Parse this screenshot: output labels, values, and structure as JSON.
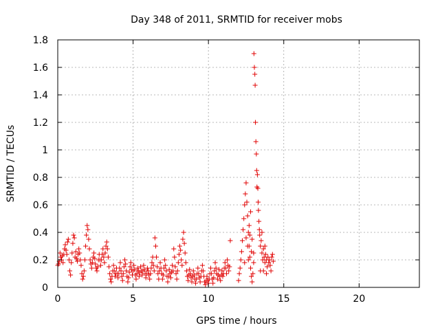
{
  "chart_data": {
    "type": "scatter",
    "title": "Day 348 of 2011, SRMTID for receiver mobs",
    "xlabel": "GPS time / hours",
    "ylabel": "SRMTID / TECUs",
    "xlim": [
      0,
      24
    ],
    "ylim": [
      0,
      1.8
    ],
    "xticks": [
      0,
      5,
      10,
      15,
      20
    ],
    "yticks": [
      0,
      0.2,
      0.4,
      0.6,
      0.8,
      1,
      1.2,
      1.4,
      1.6,
      1.8
    ],
    "ytick_labels": [
      "0",
      "0.2",
      "0.4",
      "0.6",
      "0.8",
      "1",
      "1.2",
      "1.4",
      "1.6",
      "1.8"
    ],
    "grid": true,
    "marker": "+",
    "color": "#e00000",
    "points": [
      [
        0.0,
        0.16
      ],
      [
        0.05,
        0.17
      ],
      [
        0.1,
        0.19
      ],
      [
        0.15,
        0.25
      ],
      [
        0.2,
        0.22
      ],
      [
        0.25,
        0.2
      ],
      [
        0.3,
        0.23
      ],
      [
        0.35,
        0.18
      ],
      [
        0.4,
        0.24
      ],
      [
        0.45,
        0.28
      ],
      [
        0.5,
        0.31
      ],
      [
        0.55,
        0.27
      ],
      [
        0.6,
        0.24
      ],
      [
        0.65,
        0.33
      ],
      [
        0.7,
        0.35
      ],
      [
        0.75,
        0.2
      ],
      [
        0.8,
        0.12
      ],
      [
        0.85,
        0.09
      ],
      [
        0.9,
        0.18
      ],
      [
        0.95,
        0.25
      ],
      [
        1.0,
        0.32
      ],
      [
        1.05,
        0.38
      ],
      [
        1.1,
        0.36
      ],
      [
        1.15,
        0.22
      ],
      [
        1.2,
        0.26
      ],
      [
        1.25,
        0.21
      ],
      [
        1.3,
        0.19
      ],
      [
        1.35,
        0.24
      ],
      [
        1.4,
        0.28
      ],
      [
        1.45,
        0.25
      ],
      [
        1.5,
        0.2
      ],
      [
        1.55,
        0.16
      ],
      [
        1.6,
        0.1
      ],
      [
        1.65,
        0.06
      ],
      [
        1.7,
        0.08
      ],
      [
        1.75,
        0.12
      ],
      [
        1.8,
        0.2
      ],
      [
        1.85,
        0.3
      ],
      [
        1.9,
        0.38
      ],
      [
        1.95,
        0.45
      ],
      [
        2.0,
        0.42
      ],
      [
        2.05,
        0.35
      ],
      [
        2.1,
        0.28
      ],
      [
        2.15,
        0.2
      ],
      [
        2.2,
        0.17
      ],
      [
        2.25,
        0.14
      ],
      [
        2.3,
        0.18
      ],
      [
        2.35,
        0.22
      ],
      [
        2.4,
        0.25
      ],
      [
        2.45,
        0.21
      ],
      [
        2.5,
        0.17
      ],
      [
        2.55,
        0.14
      ],
      [
        2.6,
        0.12
      ],
      [
        2.65,
        0.15
      ],
      [
        2.7,
        0.2
      ],
      [
        2.75,
        0.24
      ],
      [
        2.8,
        0.2
      ],
      [
        2.85,
        0.16
      ],
      [
        2.9,
        0.2
      ],
      [
        2.95,
        0.24
      ],
      [
        3.0,
        0.28
      ],
      [
        3.05,
        0.22
      ],
      [
        3.1,
        0.18
      ],
      [
        3.15,
        0.25
      ],
      [
        3.2,
        0.3
      ],
      [
        3.25,
        0.33
      ],
      [
        3.3,
        0.28
      ],
      [
        3.35,
        0.22
      ],
      [
        3.4,
        0.15
      ],
      [
        3.45,
        0.1
      ],
      [
        3.5,
        0.06
      ],
      [
        3.55,
        0.04
      ],
      [
        3.6,
        0.08
      ],
      [
        3.65,
        0.12
      ],
      [
        3.7,
        0.16
      ],
      [
        3.75,
        0.12
      ],
      [
        3.8,
        0.08
      ],
      [
        3.85,
        0.1
      ],
      [
        3.9,
        0.14
      ],
      [
        3.95,
        0.1
      ],
      [
        4.0,
        0.07
      ],
      [
        4.05,
        0.1
      ],
      [
        4.1,
        0.14
      ],
      [
        4.15,
        0.18
      ],
      [
        4.2,
        0.12
      ],
      [
        4.25,
        0.08
      ],
      [
        4.3,
        0.05
      ],
      [
        4.35,
        0.1
      ],
      [
        4.4,
        0.15
      ],
      [
        4.45,
        0.2
      ],
      [
        4.5,
        0.17
      ],
      [
        4.55,
        0.12
      ],
      [
        4.6,
        0.08
      ],
      [
        4.65,
        0.04
      ],
      [
        4.7,
        0.07
      ],
      [
        4.75,
        0.11
      ],
      [
        4.8,
        0.15
      ],
      [
        4.85,
        0.18
      ],
      [
        4.9,
        0.13
      ],
      [
        4.95,
        0.09
      ],
      [
        5.0,
        0.12
      ],
      [
        5.05,
        0.16
      ],
      [
        5.1,
        0.13
      ],
      [
        5.15,
        0.09
      ],
      [
        5.2,
        0.06
      ],
      [
        5.25,
        0.1
      ],
      [
        5.3,
        0.14
      ],
      [
        5.35,
        0.12
      ],
      [
        5.4,
        0.08
      ],
      [
        5.45,
        0.11
      ],
      [
        5.5,
        0.15
      ],
      [
        5.55,
        0.12
      ],
      [
        5.6,
        0.09
      ],
      [
        5.65,
        0.12
      ],
      [
        5.7,
        0.16
      ],
      [
        5.75,
        0.13
      ],
      [
        5.8,
        0.1
      ],
      [
        5.85,
        0.07
      ],
      [
        5.9,
        0.1
      ],
      [
        5.95,
        0.14
      ],
      [
        6.0,
        0.12
      ],
      [
        6.05,
        0.09
      ],
      [
        6.1,
        0.06
      ],
      [
        6.15,
        0.1
      ],
      [
        6.2,
        0.14
      ],
      [
        6.25,
        0.18
      ],
      [
        6.3,
        0.22
      ],
      [
        6.35,
        0.16
      ],
      [
        6.4,
        0.12
      ],
      [
        6.45,
        0.36
      ],
      [
        6.5,
        0.3
      ],
      [
        6.55,
        0.22
      ],
      [
        6.6,
        0.15
      ],
      [
        6.65,
        0.1
      ],
      [
        6.7,
        0.06
      ],
      [
        6.75,
        0.12
      ],
      [
        6.8,
        0.18
      ],
      [
        6.85,
        0.14
      ],
      [
        6.9,
        0.1
      ],
      [
        6.95,
        0.06
      ],
      [
        7.0,
        0.09
      ],
      [
        7.05,
        0.14
      ],
      [
        7.1,
        0.2
      ],
      [
        7.15,
        0.16
      ],
      [
        7.2,
        0.12
      ],
      [
        7.25,
        0.08
      ],
      [
        7.3,
        0.04
      ],
      [
        7.35,
        0.08
      ],
      [
        7.4,
        0.13
      ],
      [
        7.45,
        0.1
      ],
      [
        7.5,
        0.07
      ],
      [
        7.55,
        0.11
      ],
      [
        7.6,
        0.16
      ],
      [
        7.65,
        0.12
      ],
      [
        7.7,
        0.28
      ],
      [
        7.75,
        0.22
      ],
      [
        7.8,
        0.15
      ],
      [
        7.85,
        0.1
      ],
      [
        7.9,
        0.06
      ],
      [
        7.95,
        0.12
      ],
      [
        8.0,
        0.18
      ],
      [
        8.05,
        0.24
      ],
      [
        8.1,
        0.3
      ],
      [
        8.15,
        0.27
      ],
      [
        8.2,
        0.2
      ],
      [
        8.25,
        0.16
      ],
      [
        8.3,
        0.35
      ],
      [
        8.35,
        0.4
      ],
      [
        8.4,
        0.32
      ],
      [
        8.45,
        0.25
      ],
      [
        8.5,
        0.18
      ],
      [
        8.55,
        0.12
      ],
      [
        8.6,
        0.08
      ],
      [
        8.65,
        0.05
      ],
      [
        8.7,
        0.09
      ],
      [
        8.75,
        0.13
      ],
      [
        8.8,
        0.1
      ],
      [
        8.85,
        0.07
      ],
      [
        8.9,
        0.04
      ],
      [
        8.95,
        0.08
      ],
      [
        9.0,
        0.12
      ],
      [
        9.05,
        0.09
      ],
      [
        9.1,
        0.06
      ],
      [
        9.15,
        0.03
      ],
      [
        9.2,
        0.06
      ],
      [
        9.25,
        0.1
      ],
      [
        9.3,
        0.14
      ],
      [
        9.35,
        0.1
      ],
      [
        9.4,
        0.07
      ],
      [
        9.45,
        0.04
      ],
      [
        9.5,
        0.08
      ],
      [
        9.55,
        0.12
      ],
      [
        9.6,
        0.16
      ],
      [
        9.65,
        0.12
      ],
      [
        9.7,
        0.08
      ],
      [
        9.75,
        0.04
      ],
      [
        9.8,
        0.02
      ],
      [
        9.85,
        0.05
      ],
      [
        9.9,
        0.08
      ],
      [
        9.95,
        0.05
      ],
      [
        10.0,
        0.03
      ],
      [
        10.05,
        0.06
      ],
      [
        10.1,
        0.1
      ],
      [
        10.15,
        0.14
      ],
      [
        10.2,
        0.1
      ],
      [
        10.25,
        0.06
      ],
      [
        10.3,
        0.03
      ],
      [
        10.35,
        0.07
      ],
      [
        10.4,
        0.12
      ],
      [
        10.45,
        0.18
      ],
      [
        10.5,
        0.14
      ],
      [
        10.55,
        0.1
      ],
      [
        10.6,
        0.06
      ],
      [
        10.65,
        0.09
      ],
      [
        10.7,
        0.13
      ],
      [
        10.75,
        0.08
      ],
      [
        10.8,
        0.05
      ],
      [
        10.85,
        0.09
      ],
      [
        10.9,
        0.12
      ],
      [
        10.95,
        0.08
      ],
      [
        11.0,
        0.1
      ],
      [
        11.05,
        0.14
      ],
      [
        11.1,
        0.18
      ],
      [
        11.15,
        0.14
      ],
      [
        11.2,
        0.1
      ],
      [
        11.25,
        0.2
      ],
      [
        11.3,
        0.16
      ],
      [
        11.35,
        0.12
      ],
      [
        11.4,
        0.15
      ],
      [
        11.45,
        0.34
      ],
      [
        12.0,
        0.05
      ],
      [
        12.05,
        0.1
      ],
      [
        12.1,
        0.14
      ],
      [
        12.15,
        0.2
      ],
      [
        12.2,
        0.26
      ],
      [
        12.25,
        0.34
      ],
      [
        12.3,
        0.42
      ],
      [
        12.35,
        0.5
      ],
      [
        12.4,
        0.6
      ],
      [
        12.45,
        0.68
      ],
      [
        12.5,
        0.76
      ],
      [
        12.55,
        0.62
      ],
      [
        12.6,
        0.52
      ],
      [
        12.65,
        0.4
      ],
      [
        12.7,
        0.3
      ],
      [
        12.75,
        0.22
      ],
      [
        12.8,
        0.14
      ],
      [
        12.85,
        0.08
      ],
      [
        12.9,
        0.04
      ],
      [
        12.95,
        0.1
      ],
      [
        13.0,
        0.18
      ],
      [
        13.02,
        1.7
      ],
      [
        13.05,
        1.6
      ],
      [
        13.08,
        1.55
      ],
      [
        13.1,
        1.47
      ],
      [
        13.12,
        1.2
      ],
      [
        13.15,
        1.06
      ],
      [
        13.18,
        0.97
      ],
      [
        13.2,
        0.85
      ],
      [
        13.22,
        0.73
      ],
      [
        13.25,
        0.82
      ],
      [
        13.28,
        0.72
      ],
      [
        13.3,
        0.62
      ],
      [
        13.32,
        0.56
      ],
      [
        13.35,
        0.48
      ],
      [
        13.38,
        0.42
      ],
      [
        13.4,
        0.38
      ],
      [
        13.45,
        0.3
      ],
      [
        13.5,
        0.34
      ],
      [
        13.55,
        0.25
      ],
      [
        13.6,
        0.2
      ],
      [
        13.65,
        0.28
      ],
      [
        13.7,
        0.22
      ],
      [
        13.75,
        0.18
      ],
      [
        13.8,
        0.24
      ],
      [
        13.85,
        0.2
      ],
      [
        13.9,
        0.15
      ],
      [
        13.95,
        0.22
      ],
      [
        14.0,
        0.18
      ],
      [
        14.05,
        0.2
      ],
      [
        14.1,
        0.16
      ],
      [
        14.15,
        0.12
      ],
      [
        14.2,
        0.22
      ],
      [
        14.25,
        0.24
      ],
      [
        14.3,
        0.19
      ],
      [
        12.6,
        0.3
      ],
      [
        12.7,
        0.45
      ],
      [
        12.8,
        0.55
      ],
      [
        12.9,
        0.35
      ],
      [
        13.0,
        0.25
      ],
      [
        12.4,
        0.18
      ],
      [
        12.5,
        0.36
      ],
      [
        12.65,
        0.2
      ],
      [
        12.75,
        0.38
      ],
      [
        12.85,
        0.26
      ],
      [
        13.45,
        0.12
      ],
      [
        13.55,
        0.4
      ],
      [
        13.65,
        0.12
      ],
      [
        13.75,
        0.3
      ],
      [
        13.85,
        0.1
      ]
    ]
  }
}
